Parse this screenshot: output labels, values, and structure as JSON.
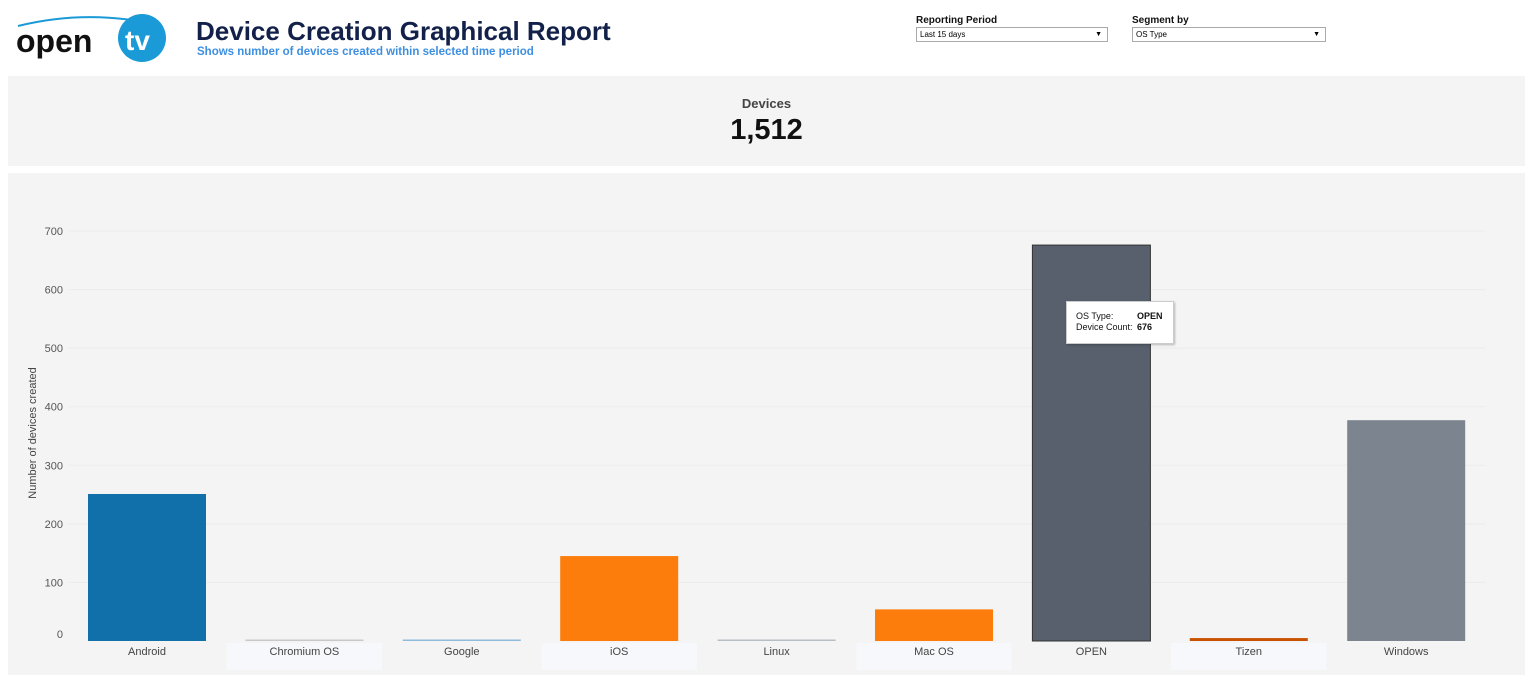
{
  "header": {
    "logo_text": "opentv",
    "title": "Device Creation Graphical Report",
    "subtitle": "Shows number of devices created within selected time period"
  },
  "filters": [
    {
      "label": "Reporting Period",
      "value": "Last 15 days"
    },
    {
      "label": "Segment by",
      "value": "OS Type"
    }
  ],
  "kpi": {
    "label": "Devices",
    "value": "1,512"
  },
  "tooltip": {
    "k1": "OS Type:",
    "v1": "OPEN",
    "k2": "Device Count:",
    "v2": "676"
  },
  "chart_data": {
    "type": "bar",
    "ylabel": "Number of devices created",
    "ylim": [
      0,
      700
    ],
    "yticks": [
      0,
      100,
      200,
      300,
      400,
      500,
      600,
      700
    ],
    "grid": true,
    "categories": [
      "Android",
      "Chromium OS",
      "Google",
      "iOS",
      "Linux",
      "Mac OS",
      "OPEN",
      "Tizen",
      "Windows"
    ],
    "values": [
      251,
      1,
      2,
      145,
      1,
      54,
      676,
      5,
      377
    ],
    "colors": [
      "#1170aa",
      "#c8c8c8",
      "#8fbbdc",
      "#fc7d0b",
      "#b8bcc4",
      "#fc7d0b",
      "#57606c",
      "#c85200",
      "#7b848f"
    ]
  }
}
